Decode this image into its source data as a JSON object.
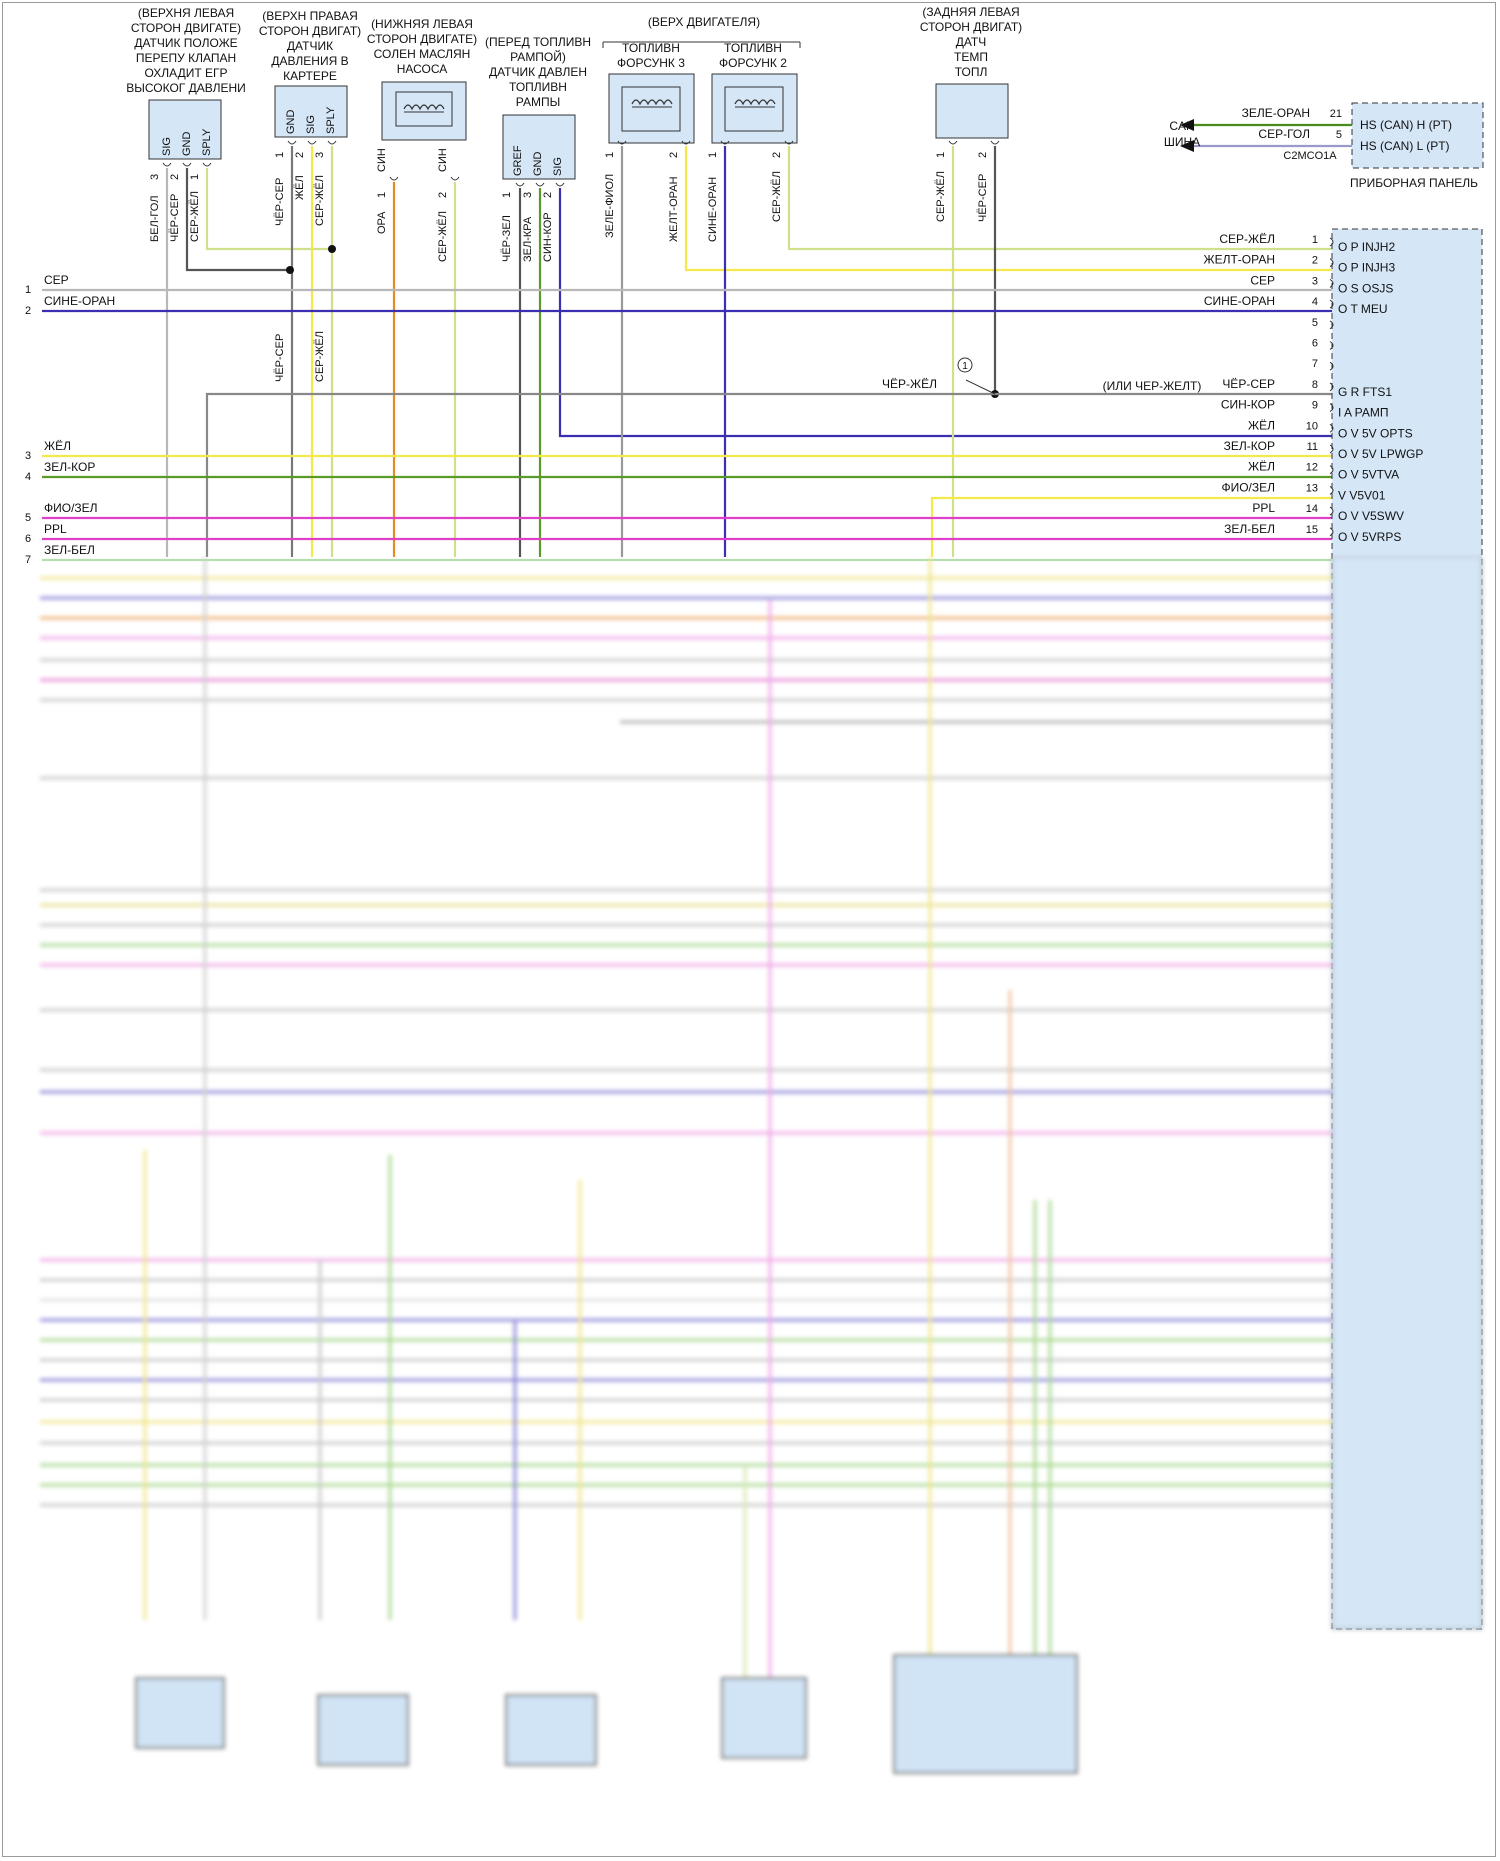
{
  "colors": {
    "wire_gray": "#b8b8b8",
    "wire_dark": "#555555",
    "wire_blue": "#3a2fb0",
    "wire_orange": "#e88a22",
    "wire_yellow": "#f4e94a",
    "wire_yellow_green": "#cfe08a",
    "wire_green": "#5a9a28",
    "wire_magenta": "#e040c8",
    "wire_lightgreen": "#b7ddb0",
    "module_fill": "#d5e6f7",
    "can_green": "#4d8a1e"
  },
  "title": {
    "engine_top": "(ВЕРХ ДВИГАТЕЛЯ)"
  },
  "components": {
    "egr": {
      "lines": [
        "(ВЕРХНЯ ЛЕВАЯ",
        "СТОРОН ДВИГАТЕ)",
        "ДАТЧИК ПОЛОЖЕ",
        "ПЕРЕПУ КЛАПАН",
        "ОХЛАДИТ ЕГР",
        "ВЫСОКОГ ДАВЛЕНИ"
      ],
      "pins": [
        "SIG",
        "GND",
        "SPLY"
      ],
      "pin_numbers": [
        "3",
        "2",
        "1"
      ],
      "wires": [
        "БЕЛ-ГОЛ",
        "ЧЁР-СЕР",
        "СЕР-ЖЁЛ"
      ]
    },
    "crank": {
      "lines": [
        "(ВЕРХН ПРАВАЯ",
        "СТОРОН ДВИГАТ)",
        "ДАТЧИК",
        "ДАВЛЕНИЯ В",
        "КАРТЕРЕ"
      ],
      "pins": [
        "GND",
        "SIG",
        "SPLY"
      ],
      "pin_numbers": [
        "1",
        "2",
        "3"
      ],
      "wires": [
        "ЧЁР-СЕР",
        "ЖЁЛ",
        "СЕР-ЖЁЛ"
      ]
    },
    "oilpump": {
      "lines": [
        "(НИЖНЯЯ ЛЕВАЯ",
        "СТОРОН ДВИГАТЕ)",
        "СОЛЕН МАСЛЯН",
        "НАСОСА"
      ],
      "pin_numbers": [
        "1",
        "2"
      ],
      "pin_colors": [
        "СИН",
        "СИН"
      ],
      "wires": [
        "ОРА",
        "СЕР-ЖЁЛ"
      ]
    },
    "fuelrail": {
      "lines": [
        "(ПЕРЕД ТОПЛИВН",
        "РАМПОЙ)",
        "ДАТЧИК ДАВЛЕН",
        "ТОПЛИВН",
        "РАМПЫ"
      ],
      "pins": [
        "GREF",
        "GND",
        "SIG"
      ],
      "pin_numbers": [
        "1",
        "3",
        "2"
      ],
      "wires": [
        "ЧЁР-ЗЕЛ",
        "ЗЕЛ-КРА",
        "СИН-КОР"
      ]
    },
    "inj3": {
      "lines": [
        "ТОПЛИВН",
        "ФОРСУНК 3"
      ],
      "pin_numbers": [
        "1",
        "2"
      ],
      "wires": [
        "ЗЕЛЕ-ФИОЛ",
        "ЖЕЛТ-ОРАН"
      ]
    },
    "inj2": {
      "lines": [
        "ТОПЛИВН",
        "ФОРСУНК 2"
      ],
      "pin_numbers": [
        "1",
        "2"
      ],
      "wires": [
        "СИНЕ-ОРАН",
        "СЕР-ЖЁЛ"
      ]
    },
    "temp": {
      "lines": [
        "(ЗАДНЯЯ ЛЕВАЯ",
        "СТОРОН ДВИГАТ)",
        "ДАТЧ",
        "ТЕМП",
        "ТОПЛ"
      ],
      "pin_numbers": [
        "1",
        "2"
      ],
      "wires": [
        "СЕР-ЖЁЛ",
        "ЧЁР-СЕР"
      ]
    }
  },
  "can_bus": {
    "label_lines": [
      "CAN",
      "ШИНА"
    ],
    "wires": [
      {
        "color_label": "ЗЕЛЕ-ОРАН",
        "pin": "21",
        "pin_label": "HS (CAN) H (PT)"
      },
      {
        "color_label": "СЕР-ГОЛ",
        "pin": "5",
        "pin_label": "HS (CAN) L (PT)"
      }
    ],
    "connector": "C2MCO1A",
    "panel_label": "ПРИБОРНАЯ ПАНЕЛЬ"
  },
  "left_wires": [
    {
      "num": "1",
      "label": "СЕР"
    },
    {
      "num": "2",
      "label": "СИНЕ-ОРАН"
    },
    {
      "num": "3",
      "label": "ЖЁЛ"
    },
    {
      "num": "4",
      "label": "ЗЕЛ-КОР"
    },
    {
      "num": "5",
      "label": "ФИО/ЗЕЛ"
    },
    {
      "num": "6",
      "label": "PPL"
    },
    {
      "num": "7",
      "label": "ЗЕЛ-БЕЛ"
    }
  ],
  "splice_labels": {
    "vertical_left_a": "ЧЁР-СЕР",
    "vertical_left_b": "СЕР-ЖЁЛ",
    "pin8_left": "ЧЁР-ЖЁЛ",
    "pin8_alt": "(ИЛИ ЧЕР-ЖЕЛТ)",
    "splice_marker": "1"
  },
  "pcm_pins": [
    {
      "num": "1",
      "wire": "СЕР-ЖЁЛ",
      "func": "O P INJH2"
    },
    {
      "num": "2",
      "wire": "ЖЕЛТ-ОРАН",
      "func": "O P INJH3"
    },
    {
      "num": "3",
      "wire": "СЕР",
      "func": "O S OSJS"
    },
    {
      "num": "4",
      "wire": "СИНЕ-ОРАН",
      "func": "O T MEU"
    },
    {
      "num": "5",
      "wire": "",
      "func": ""
    },
    {
      "num": "6",
      "wire": "",
      "func": ""
    },
    {
      "num": "7",
      "wire": "",
      "func": ""
    },
    {
      "num": "8",
      "wire": "ЧЁР-СЕР",
      "func": "G R FTS1"
    },
    {
      "num": "9",
      "wire": "СИН-КОР",
      "func": "I A РАМП"
    },
    {
      "num": "10",
      "wire": "ЖЁЛ",
      "func": "O V 5V OPTS"
    },
    {
      "num": "11",
      "wire": "ЗЕЛ-КОР",
      "func": "O V 5V LPWGP"
    },
    {
      "num": "12",
      "wire": "ЖЁЛ",
      "func": "O V 5VTVA"
    },
    {
      "num": "13",
      "wire": "ФИО/ЗЕЛ",
      "func": "V V5V01"
    },
    {
      "num": "14",
      "wire": "PPL",
      "func": "O V V5SWV"
    },
    {
      "num": "15",
      "wire": "ЗЕЛ-БЕЛ",
      "func": "O V 5VRPS"
    }
  ]
}
